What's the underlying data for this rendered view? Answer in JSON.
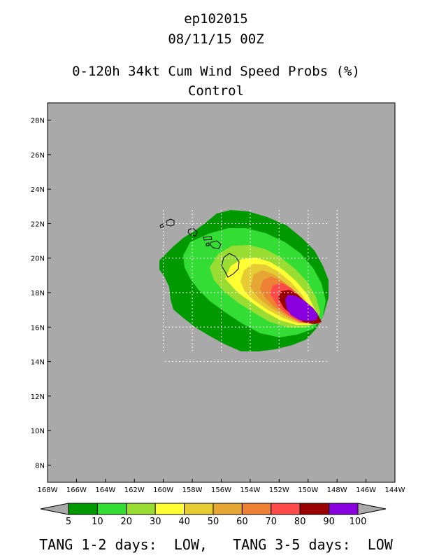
{
  "header": {
    "storm_id": "ep102015",
    "datetime": "08/11/15 00Z",
    "product": "0-120h 34kt Cum Wind Speed Probs (%)",
    "member": "Control"
  },
  "map": {
    "background_color": "#a9a9a9",
    "lat_labels": [
      "28N",
      "26N",
      "24N",
      "22N",
      "20N",
      "18N",
      "16N",
      "14N",
      "12N",
      "10N",
      "8N"
    ],
    "lon_labels": [
      "168W",
      "166W",
      "164W",
      "162W",
      "160W",
      "158W",
      "156W",
      "154W",
      "152W",
      "150W",
      "148W",
      "146W",
      "144W"
    ],
    "lat_range": [
      7,
      29
    ],
    "lon_range": [
      -168,
      -144
    ],
    "features": [
      "hawaiian-islands-outline",
      "wind-probability-contours",
      "dotted-lat-lon-grid"
    ]
  },
  "legend": {
    "levels": [
      "5",
      "10",
      "20",
      "30",
      "40",
      "50",
      "60",
      "70",
      "80",
      "90",
      "100"
    ],
    "colors": [
      "#009900",
      "#33dd33",
      "#99dd33",
      "#ffff33",
      "#e6cc33",
      "#e6a633",
      "#ee8033",
      "#ff4a4a",
      "#990000",
      "#8800dd"
    ]
  },
  "footer": {
    "text": "TANG 1-2 days:  LOW,   TANG 3-5 days:  LOW"
  }
}
